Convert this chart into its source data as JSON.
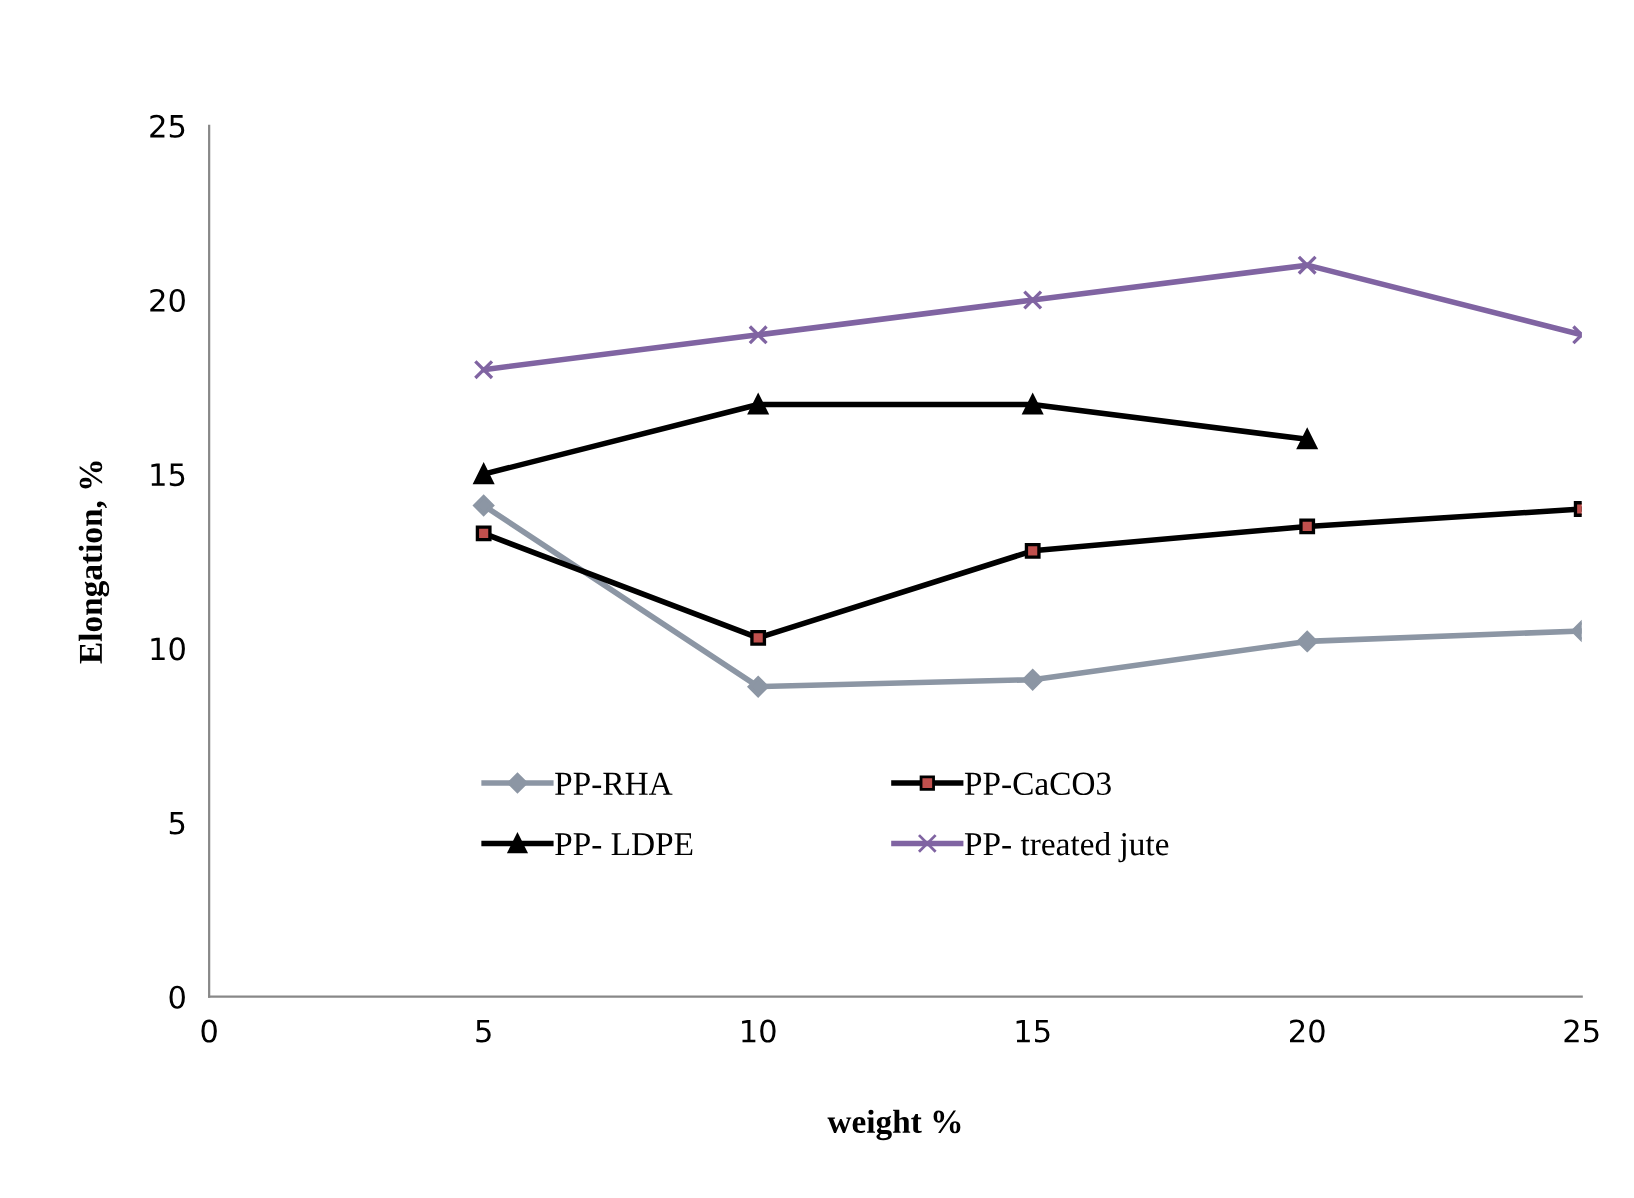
{
  "chart_data": {
    "type": "line",
    "xlabel": "weight %",
    "ylabel": "Elongation, %",
    "x": [
      5,
      10,
      15,
      20,
      25
    ],
    "xlim": [
      0,
      25
    ],
    "xticks": [
      0,
      5,
      10,
      15,
      20,
      25
    ],
    "ylim": [
      0,
      25
    ],
    "yticks": [
      0,
      5,
      10,
      15,
      20,
      25
    ],
    "grid": false,
    "legend": "bottom",
    "series": [
      {
        "name": "PP-RHA",
        "color": "#8c96a4",
        "marker": "diamond",
        "values": [
          14.1,
          8.9,
          9.1,
          10.2,
          10.5
        ]
      },
      {
        "name": "PP-CaCO3",
        "color": "#000000",
        "marker": "square",
        "values": [
          13.3,
          10.3,
          12.8,
          13.5,
          14.0
        ]
      },
      {
        "name": "PP- LDPE",
        "color": "#000000",
        "marker": "triangle",
        "values": [
          15,
          17,
          17,
          16,
          null
        ]
      },
      {
        "name": "PP- treated jute",
        "color": "#8064a2",
        "marker": "cross",
        "values": [
          18,
          19,
          20,
          21,
          19
        ]
      }
    ]
  }
}
